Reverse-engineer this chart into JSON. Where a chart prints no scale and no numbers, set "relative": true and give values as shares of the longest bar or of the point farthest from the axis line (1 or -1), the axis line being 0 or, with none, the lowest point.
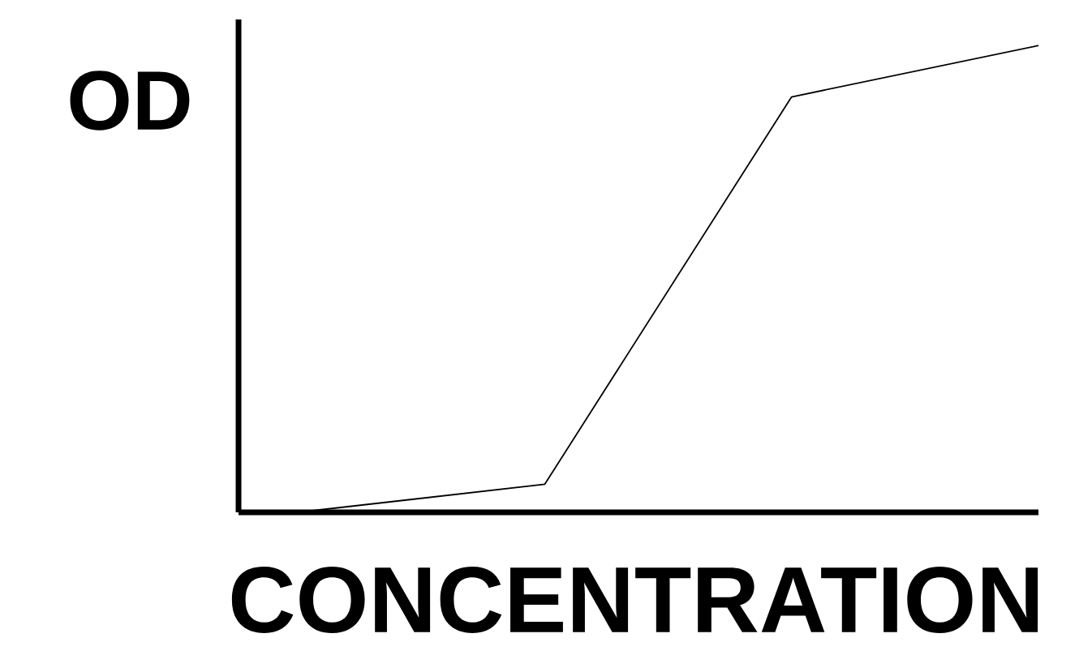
{
  "chart_data": {
    "type": "line",
    "xlabel": "CONCENTRATION",
    "ylabel": "OD",
    "relative": true,
    "categories": [
      null,
      null,
      null,
      null
    ],
    "series": [
      {
        "color": "#000000",
        "values": [
          0,
          0.06,
          0.89,
          1
        ]
      }
    ]
  }
}
